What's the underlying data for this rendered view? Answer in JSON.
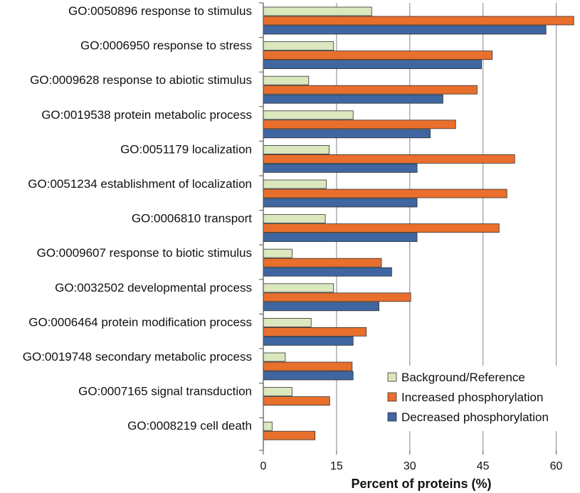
{
  "chart_data": {
    "type": "bar",
    "orientation": "horizontal",
    "title": "",
    "xlabel": "Percent of proteins (%)",
    "ylabel": "",
    "xlim": [
      0,
      64
    ],
    "xticks": [
      0,
      15,
      30,
      45,
      60
    ],
    "grid": true,
    "legend_position": "bottom-right",
    "categories": [
      "GO:0050896 response to stimulus",
      "GO:0006950 response to stress",
      "GO:0009628 response to abiotic stimulus",
      "GO:0019538 protein metabolic process",
      "GO:0051179 localization",
      "GO:0051234 establishment of localization",
      "GO:0006810 transport",
      "GO:0009607 response to biotic stimulus",
      "GO:0032502 developmental process",
      "GO:0006464 protein modification process",
      "GO:0019748 secondary metabolic process",
      "GO:0007165 signal transduction",
      "GO:0008219 cell death"
    ],
    "series": [
      {
        "name": "Background/Reference",
        "color": "#dbe7bd",
        "values": [
          22.2,
          14.4,
          9.3,
          18.4,
          13.5,
          12.9,
          12.7,
          5.9,
          14.4,
          9.8,
          4.5,
          5.9,
          1.8
        ]
      },
      {
        "name": "Increased phosphorylation",
        "color": "#e96f2c",
        "values": [
          63.6,
          46.9,
          43.8,
          39.4,
          51.5,
          49.9,
          48.3,
          24.2,
          30.2,
          21.1,
          18.2,
          13.6,
          10.6
        ]
      },
      {
        "name": "Decreased phosphorylation",
        "color": "#3f66a1",
        "values": [
          57.9,
          44.7,
          36.8,
          34.2,
          31.5,
          31.5,
          31.5,
          26.3,
          23.7,
          18.4,
          18.4,
          0,
          0
        ]
      }
    ]
  }
}
